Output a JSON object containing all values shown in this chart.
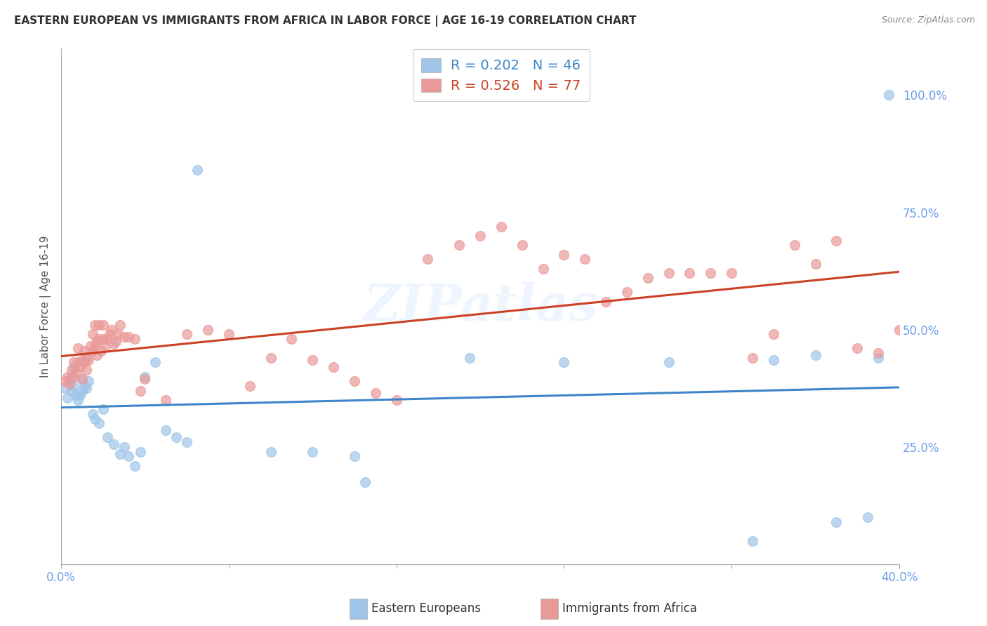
{
  "title": "EASTERN EUROPEAN VS IMMIGRANTS FROM AFRICA IN LABOR FORCE | AGE 16-19 CORRELATION CHART",
  "source": "Source: ZipAtlas.com",
  "ylabel": "In Labor Force | Age 16-19",
  "xlim": [
    0.0,
    0.4
  ],
  "ylim": [
    0.0,
    1.1
  ],
  "right_yticks": [
    0.0,
    0.25,
    0.5,
    0.75,
    1.0
  ],
  "right_yticklabels": [
    "",
    "25.0%",
    "50.0%",
    "75.0%",
    "100.0%"
  ],
  "xticks": [
    0.0,
    0.08,
    0.16,
    0.24,
    0.32,
    0.4
  ],
  "xticklabels": [
    "0.0%",
    "",
    "",
    "",
    "",
    "40.0%"
  ],
  "blue_color": "#9fc5e8",
  "pink_color": "#ea9999",
  "blue_line_color": "#3d85c8",
  "pink_line_color": "#cc4125",
  "axis_label_color": "#6d9eeb",
  "grid_color": "#cccccc",
  "watermark": "ZIPatlas",
  "legend_R_blue": "R = 0.202",
  "legend_N_blue": "N = 46",
  "legend_R_pink": "R = 0.526",
  "legend_N_pink": "N = 77",
  "blue_x": [
    0.002,
    0.003,
    0.004,
    0.005,
    0.005,
    0.006,
    0.006,
    0.007,
    0.008,
    0.009,
    0.01,
    0.01,
    0.011,
    0.012,
    0.013,
    0.015,
    0.016,
    0.018,
    0.02,
    0.022,
    0.025,
    0.028,
    0.03,
    0.032,
    0.035,
    0.038,
    0.04,
    0.045,
    0.05,
    0.055,
    0.06,
    0.065,
    0.1,
    0.12,
    0.14,
    0.145,
    0.195,
    0.24,
    0.29,
    0.33,
    0.34,
    0.36,
    0.37,
    0.385,
    0.39,
    0.395
  ],
  "blue_y": [
    0.375,
    0.355,
    0.39,
    0.37,
    0.4,
    0.38,
    0.42,
    0.36,
    0.35,
    0.36,
    0.37,
    0.395,
    0.38,
    0.375,
    0.39,
    0.32,
    0.31,
    0.3,
    0.33,
    0.27,
    0.255,
    0.235,
    0.25,
    0.23,
    0.21,
    0.24,
    0.4,
    0.43,
    0.285,
    0.27,
    0.26,
    0.84,
    0.24,
    0.24,
    0.23,
    0.175,
    0.44,
    0.43,
    0.43,
    0.05,
    0.435,
    0.445,
    0.09,
    0.1,
    0.44,
    1.0
  ],
  "pink_x": [
    0.002,
    0.003,
    0.004,
    0.005,
    0.006,
    0.006,
    0.007,
    0.008,
    0.008,
    0.009,
    0.01,
    0.01,
    0.011,
    0.011,
    0.012,
    0.012,
    0.013,
    0.014,
    0.015,
    0.015,
    0.016,
    0.016,
    0.017,
    0.017,
    0.018,
    0.018,
    0.019,
    0.02,
    0.02,
    0.021,
    0.022,
    0.023,
    0.024,
    0.025,
    0.026,
    0.027,
    0.028,
    0.03,
    0.032,
    0.035,
    0.038,
    0.04,
    0.05,
    0.06,
    0.07,
    0.08,
    0.09,
    0.1,
    0.11,
    0.12,
    0.13,
    0.14,
    0.15,
    0.16,
    0.175,
    0.19,
    0.2,
    0.21,
    0.22,
    0.23,
    0.24,
    0.25,
    0.26,
    0.27,
    0.28,
    0.29,
    0.3,
    0.31,
    0.32,
    0.33,
    0.34,
    0.35,
    0.36,
    0.37,
    0.38,
    0.39,
    0.4
  ],
  "pink_y": [
    0.39,
    0.4,
    0.385,
    0.415,
    0.4,
    0.43,
    0.41,
    0.43,
    0.46,
    0.42,
    0.435,
    0.395,
    0.455,
    0.43,
    0.415,
    0.44,
    0.435,
    0.465,
    0.455,
    0.49,
    0.465,
    0.51,
    0.475,
    0.445,
    0.48,
    0.51,
    0.455,
    0.48,
    0.51,
    0.465,
    0.48,
    0.49,
    0.5,
    0.47,
    0.475,
    0.49,
    0.51,
    0.485,
    0.485,
    0.48,
    0.37,
    0.395,
    0.35,
    0.49,
    0.5,
    0.49,
    0.38,
    0.44,
    0.48,
    0.435,
    0.42,
    0.39,
    0.365,
    0.35,
    0.65,
    0.68,
    0.7,
    0.72,
    0.68,
    0.63,
    0.66,
    0.65,
    0.56,
    0.58,
    0.61,
    0.62,
    0.62,
    0.62,
    0.62,
    0.44,
    0.49,
    0.68,
    0.64,
    0.69,
    0.46,
    0.45,
    0.5
  ]
}
